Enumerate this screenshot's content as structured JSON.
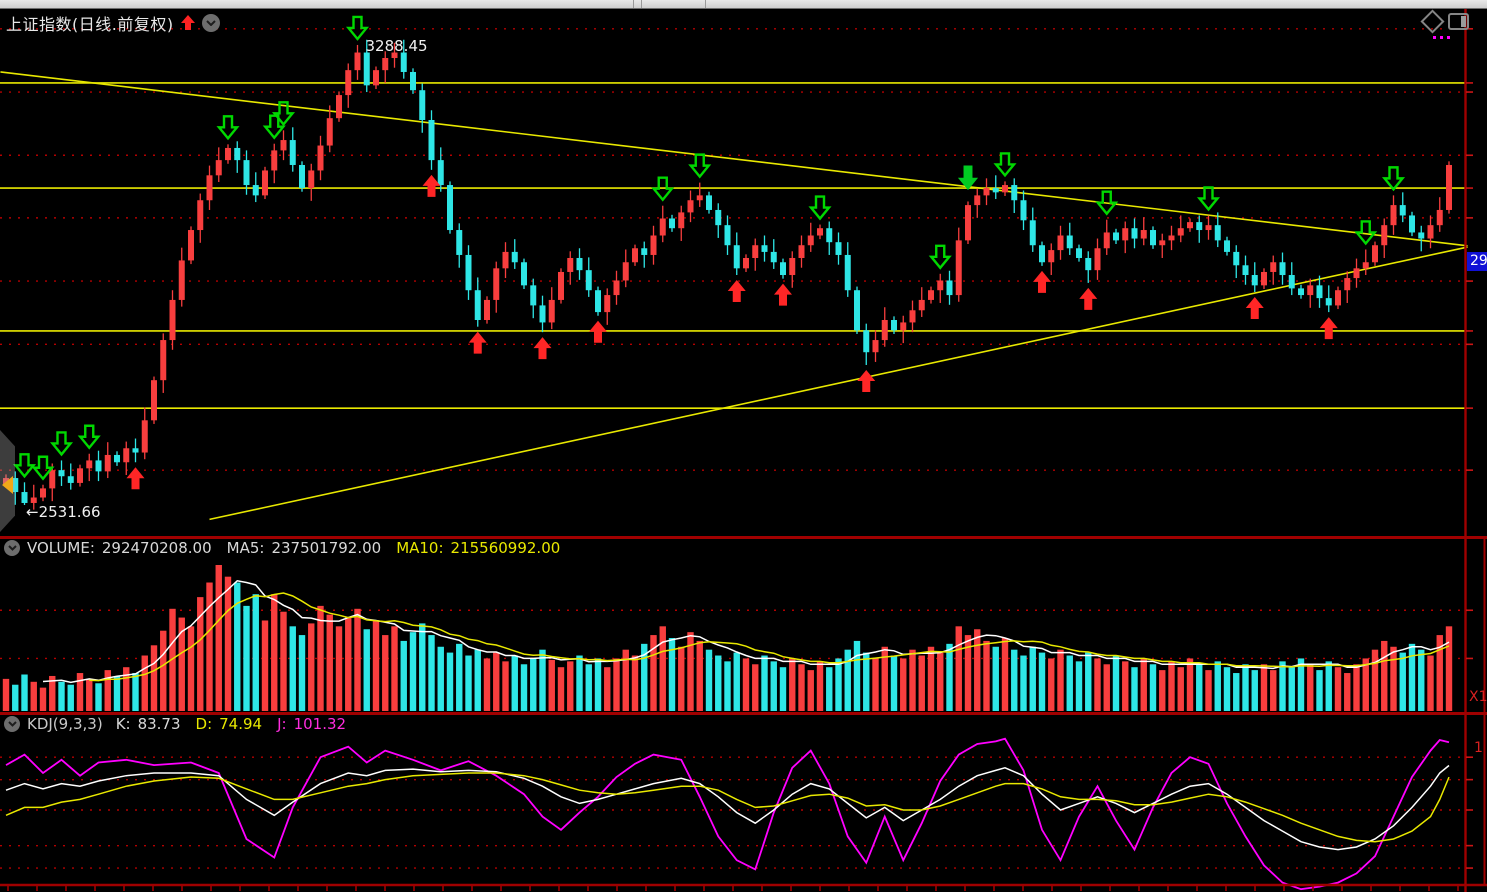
{
  "header": {
    "title": "上证指数(日线.前复权)"
  },
  "main_pane": {
    "high_label": "3288.45",
    "low_label": "←2531.66",
    "price_axis_label": "29"
  },
  "volume_pane": {
    "name_label": "VOLUME:",
    "value": "292470208.00",
    "ma5_label": "MA5:",
    "ma5_value": "237501792.00",
    "ma10_label": "MA10:",
    "ma10_value": "215560992.00",
    "axis_multiplier_label": "X1"
  },
  "kdj_pane": {
    "name_label": "KDJ(9,3,3)",
    "k_label": "K:",
    "k_value": "83.73",
    "d_label": "D:",
    "d_value": "74.94",
    "j_label": "J:",
    "j_value": "101.32",
    "axis_level_label": "1"
  },
  "colors": {
    "up": "#f83e3e",
    "down": "#2ee6e6",
    "ma_fast": "#ffffff",
    "ma_slow": "#e8e800",
    "k_line": "#ffffff",
    "d_line": "#e8e800",
    "j_line": "#ff00ff",
    "grid_dotted": "#b40000",
    "axis": "#a00000",
    "trendline": "#e8e800",
    "yellow_level": "#e8e800",
    "buy_marker": "#ff2626",
    "sell_marker": "#00d800",
    "price_label_bg": "#1111d6",
    "title_arrow": "#ff2222"
  },
  "chart_data": [
    {
      "type": "candlestick",
      "title": "上证指数(日线.前复权)",
      "price_range": [
        2480,
        3350
      ],
      "closes": [
        2576,
        2553,
        2535,
        2544,
        2559,
        2589,
        2579,
        2568,
        2592,
        2605,
        2587,
        2614,
        2602,
        2625,
        2618,
        2671,
        2737,
        2803,
        2869,
        2934,
        2984,
        3033,
        3074,
        3099,
        3119,
        3099,
        3058,
        3041,
        3082,
        3115,
        3132,
        3091,
        3053,
        3082,
        3123,
        3168,
        3206,
        3247,
        3276,
        3222,
        3247,
        3267,
        3276,
        3244,
        3214,
        3165,
        3099,
        3058,
        2984,
        2943,
        2885,
        2836,
        2869,
        2921,
        2948,
        2931,
        2893,
        2860,
        2832,
        2869,
        2915,
        2938,
        2918,
        2885,
        2849,
        2877,
        2901,
        2931,
        2954,
        2943,
        2975,
        3003,
        2987,
        3013,
        3033,
        3041,
        3017,
        2992,
        2959,
        2921,
        2938,
        2959,
        2948,
        2931,
        2910,
        2938,
        2959,
        2975,
        2987,
        2964,
        2943,
        2885,
        2819,
        2783,
        2803,
        2836,
        2819,
        2832,
        2852,
        2869,
        2885,
        2901,
        2877,
        2967,
        3025,
        3041,
        3053,
        3046,
        3058,
        3033,
        3000,
        2959,
        2931,
        2951,
        2975,
        2954,
        2938,
        2918,
        2954,
        2980,
        2967,
        2987,
        2970,
        2984,
        2959,
        2967,
        2975,
        2987,
        2997,
        2984,
        2992,
        2967,
        2948,
        2926,
        2910,
        2893,
        2915,
        2931,
        2910,
        2888,
        2877,
        2893,
        2872,
        2860,
        2885,
        2905,
        2921,
        2931,
        2959,
        2992,
        3025,
        3008,
        2980,
        2970,
        2992,
        3017,
        3091
      ],
      "high_point": {
        "index": 38,
        "price": 3288.45
      },
      "low_point": {
        "index": 2,
        "price": 2531.66
      },
      "horizontal_lines": [
        3226,
        3053,
        2818,
        2691
      ],
      "dotted_gridlines": [
        3315,
        3211,
        3107,
        3004,
        2900,
        2796,
        2589
      ],
      "trendlines": [
        {
          "i1": -0.6,
          "p1": 3244,
          "i2": 158,
          "p2": 2958
        },
        {
          "i1": 22,
          "p1": 2508,
          "i2": 158,
          "p2": 2956
        }
      ],
      "buy_markers": [
        14,
        46,
        51,
        58,
        64,
        79,
        84,
        93,
        112,
        117,
        135,
        143
      ],
      "sell_markers": [
        2,
        4,
        6,
        9,
        24,
        29,
        30,
        38,
        71,
        75,
        88,
        101,
        108,
        119,
        130,
        147,
        150
      ],
      "sell_markers_solid": [
        104
      ]
    },
    {
      "type": "bar",
      "title": "VOLUME",
      "latest": 292470208.0,
      "ma5": 237501792.0,
      "ma10": 215560992.0,
      "values": [
        22,
        18,
        25,
        20,
        16,
        24,
        20,
        18,
        26,
        22,
        19,
        28,
        24,
        30,
        26,
        38,
        45,
        55,
        70,
        64,
        58,
        78,
        88,
        100,
        92,
        88,
        72,
        80,
        62,
        80,
        68,
        58,
        52,
        60,
        72,
        66,
        58,
        64,
        70,
        56,
        62,
        52,
        58,
        48,
        54,
        60,
        52,
        44,
        40,
        46,
        38,
        42,
        36,
        40,
        34,
        38,
        32,
        36,
        42,
        35,
        30,
        34,
        38,
        32,
        36,
        30,
        36,
        42,
        38,
        46,
        52,
        58,
        50,
        44,
        54,
        48,
        42,
        38,
        34,
        40,
        36,
        32,
        38,
        34,
        30,
        36,
        32,
        28,
        34,
        30,
        36,
        42,
        48,
        40,
        36,
        44,
        38,
        36,
        42,
        38,
        44,
        40,
        46,
        58,
        52,
        56,
        48,
        44,
        50,
        42,
        38,
        44,
        40,
        36,
        42,
        38,
        34,
        40,
        36,
        32,
        38,
        34,
        30,
        36,
        32,
        28,
        34,
        30,
        36,
        32,
        28,
        34,
        30,
        26,
        32,
        28,
        32,
        28,
        34,
        30,
        36,
        32,
        28,
        34,
        30,
        26,
        32,
        36,
        42,
        48,
        44,
        40,
        46,
        42,
        38,
        52,
        58
      ],
      "gridlines": [
        69,
        36
      ]
    },
    {
      "type": "line",
      "title": "KDJ(9,3,3)",
      "series": [
        "K",
        "D",
        "J"
      ],
      "latest": {
        "K": 83.73,
        "D": 74.94,
        "J": 101.32
      },
      "gridlines": [
        90,
        73,
        50,
        23,
        6
      ],
      "points": [
        [
          0,
          65,
          46,
          84
        ],
        [
          2,
          70,
          52,
          92
        ],
        [
          4,
          66,
          52,
          78
        ],
        [
          6,
          70,
          56,
          88
        ],
        [
          8,
          68,
          58,
          76
        ],
        [
          10,
          72,
          62,
          86
        ],
        [
          13,
          76,
          68,
          88
        ],
        [
          16,
          78,
          72,
          84
        ],
        [
          20,
          78,
          75,
          86
        ],
        [
          23,
          76,
          74,
          78
        ],
        [
          26,
          58,
          66,
          28
        ],
        [
          29,
          46,
          58,
          14
        ],
        [
          31,
          56,
          58,
          52
        ],
        [
          34,
          70,
          63,
          90
        ],
        [
          37,
          78,
          68,
          98
        ],
        [
          39,
          76,
          70,
          86
        ],
        [
          41,
          80,
          73,
          95
        ],
        [
          44,
          81,
          76,
          88
        ],
        [
          47,
          79,
          77,
          80
        ],
        [
          50,
          80,
          78,
          87
        ],
        [
          53,
          79,
          78,
          76
        ],
        [
          56,
          74,
          76,
          62
        ],
        [
          58,
          68,
          73,
          45
        ],
        [
          60,
          60,
          69,
          35
        ],
        [
          62,
          55,
          65,
          48
        ],
        [
          64,
          58,
          63,
          60
        ],
        [
          66,
          62,
          62,
          75
        ],
        [
          68,
          66,
          63,
          85
        ],
        [
          70,
          70,
          65,
          92
        ],
        [
          73,
          74,
          68,
          88
        ],
        [
          75,
          70,
          68,
          60
        ],
        [
          77,
          60,
          65,
          30
        ],
        [
          79,
          48,
          58,
          12
        ],
        [
          81,
          40,
          52,
          5
        ],
        [
          83,
          50,
          53,
          48
        ],
        [
          85,
          62,
          57,
          82
        ],
        [
          87,
          70,
          61,
          95
        ],
        [
          89,
          66,
          62,
          70
        ],
        [
          91,
          55,
          59,
          30
        ],
        [
          93,
          44,
          53,
          10
        ],
        [
          95,
          52,
          54,
          45
        ],
        [
          97,
          42,
          50,
          12
        ],
        [
          99,
          50,
          50,
          40
        ],
        [
          101,
          58,
          53,
          72
        ],
        [
          103,
          68,
          58,
          92
        ],
        [
          105,
          76,
          63,
          100
        ],
        [
          107,
          80,
          68,
          102
        ],
        [
          108,
          82,
          70,
          104
        ],
        [
          110,
          76,
          70,
          80
        ],
        [
          112,
          62,
          66,
          35
        ],
        [
          114,
          50,
          60,
          12
        ],
        [
          116,
          55,
          58,
          45
        ],
        [
          118,
          60,
          58,
          68
        ],
        [
          120,
          55,
          57,
          42
        ],
        [
          122,
          48,
          54,
          20
        ],
        [
          124,
          55,
          54,
          52
        ],
        [
          126,
          62,
          56,
          78
        ],
        [
          128,
          68,
          59,
          90
        ],
        [
          130,
          70,
          62,
          85
        ],
        [
          132,
          62,
          60,
          55
        ],
        [
          134,
          52,
          56,
          30
        ],
        [
          136,
          42,
          51,
          8
        ],
        [
          138,
          34,
          46,
          -5
        ],
        [
          140,
          26,
          40,
          -10
        ],
        [
          142,
          22,
          35,
          -8
        ],
        [
          144,
          20,
          30,
          -5
        ],
        [
          146,
          22,
          27,
          2
        ],
        [
          148,
          28,
          26,
          15
        ],
        [
          150,
          38,
          28,
          45
        ],
        [
          152,
          52,
          34,
          75
        ],
        [
          154,
          68,
          45,
          95
        ],
        [
          155,
          78,
          58,
          103
        ],
        [
          156,
          83.73,
          74.94,
          101.32
        ]
      ]
    }
  ]
}
